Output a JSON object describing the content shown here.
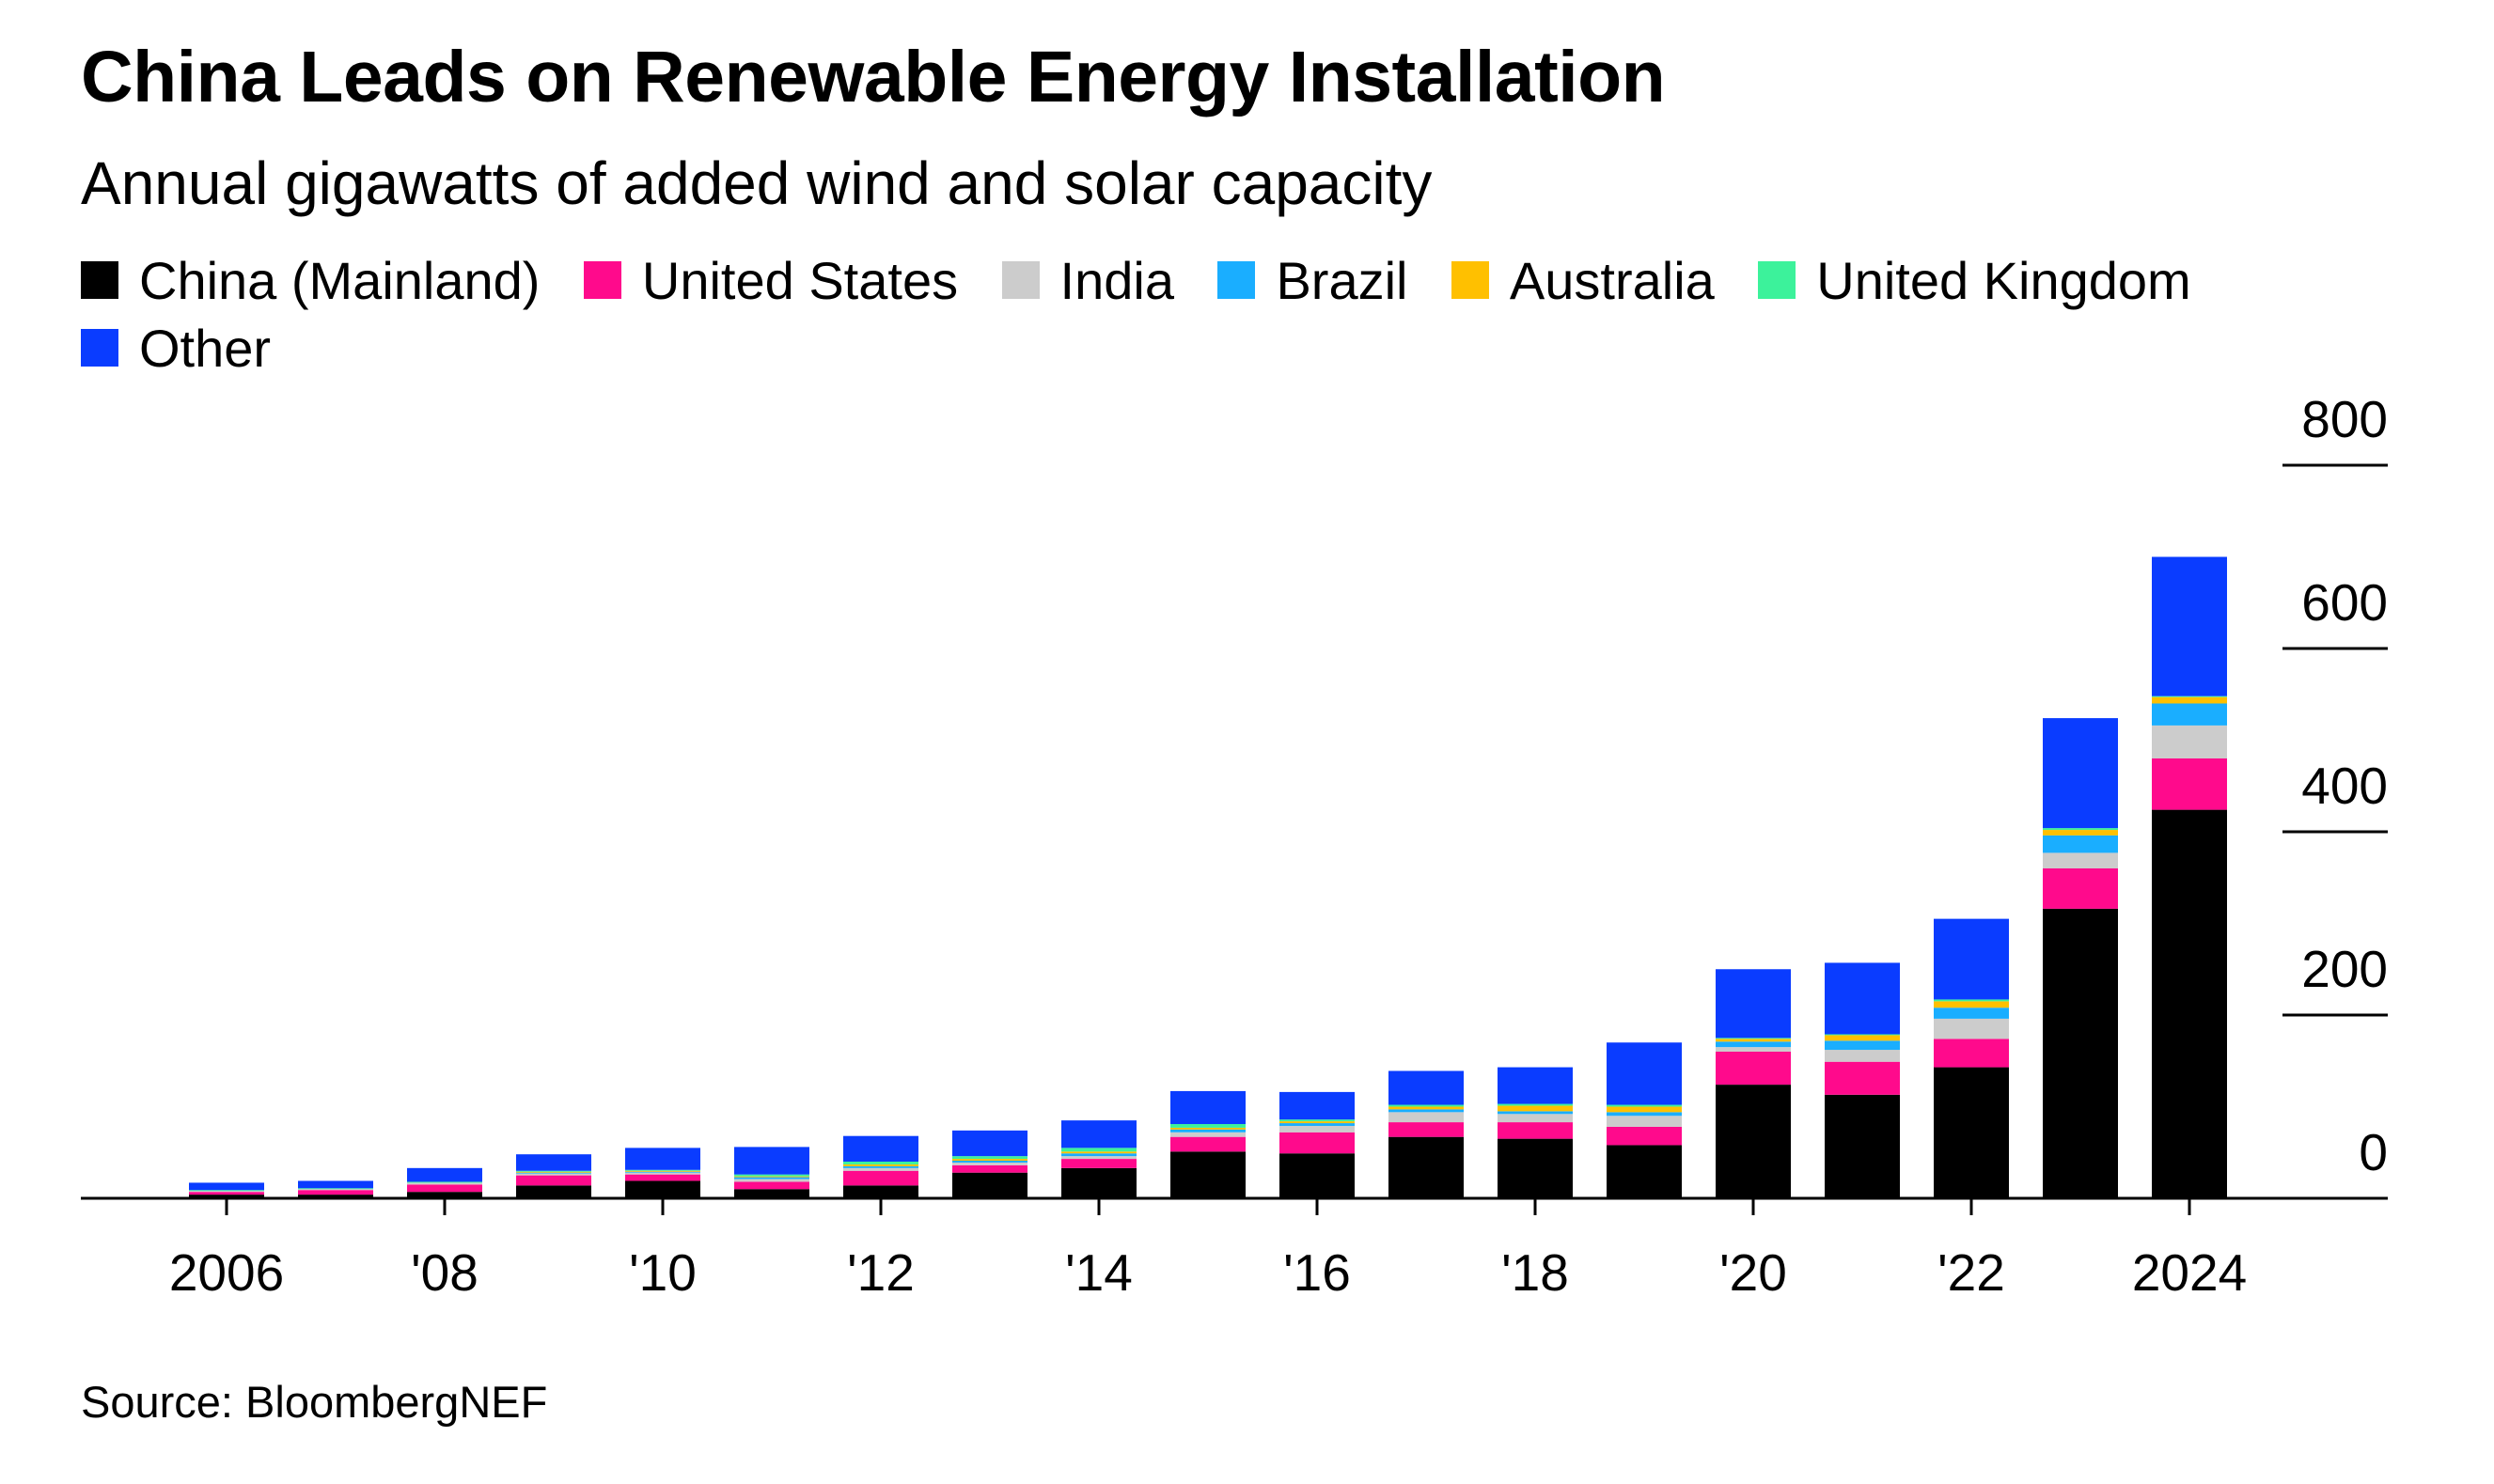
{
  "title": "China Leads on Renewable Energy Installation",
  "subtitle": "Annual gigawatts of added wind and solar capacity",
  "source": "Source: BloombergNEF",
  "legend": [
    {
      "label": "China (Mainland)",
      "color": "#000000"
    },
    {
      "label": "United States",
      "color": "#ff0a8c"
    },
    {
      "label": "India",
      "color": "#cccccc"
    },
    {
      "label": "Brazil",
      "color": "#1aaeff"
    },
    {
      "label": "Australia",
      "color": "#ffc000"
    },
    {
      "label": "United Kingdom",
      "color": "#3cf29b"
    },
    {
      "label": "Other",
      "color": "#0a3cff"
    }
  ],
  "chart_data": {
    "type": "bar",
    "stacked": true,
    "title": "China Leads on Renewable Energy Installation",
    "subtitle": "Annual gigawatts of added wind and solar capacity",
    "xlabel": "",
    "ylabel": "",
    "ylim": [
      0,
      800
    ],
    "yticks": [
      0,
      200,
      400,
      600,
      800
    ],
    "ytick_labels": [
      "0",
      "200",
      "400",
      "600",
      "800"
    ],
    "grid": false,
    "legend_position": "top-left",
    "categories": [
      "2006",
      "2007",
      "2008",
      "2009",
      "2010",
      "2011",
      "2012",
      "2013",
      "2014",
      "2015",
      "2016",
      "2017",
      "2018",
      "2019",
      "2020",
      "2021",
      "2022",
      "2023",
      "2024"
    ],
    "xtick_labels": [
      {
        "category": "2006",
        "label": "2006"
      },
      {
        "category": "2008",
        "label": "'08"
      },
      {
        "category": "2010",
        "label": "'10"
      },
      {
        "category": "2012",
        "label": "'12"
      },
      {
        "category": "2014",
        "label": "'14"
      },
      {
        "category": "2016",
        "label": "'16"
      },
      {
        "category": "2018",
        "label": "'18"
      },
      {
        "category": "2020",
        "label": "'20"
      },
      {
        "category": "2022",
        "label": "'22"
      },
      {
        "category": "2024",
        "label": "2024"
      }
    ],
    "series": [
      {
        "name": "China (Mainland)",
        "color": "#000000",
        "values": [
          4,
          4,
          7,
          14,
          19,
          10,
          14,
          28,
          33,
          51,
          49,
          67,
          65,
          58,
          124,
          113,
          143,
          316,
          424
        ]
      },
      {
        "name": "United States",
        "color": "#ff0a8c",
        "values": [
          3,
          5,
          8,
          11,
          7,
          8,
          16,
          8,
          10,
          16,
          23,
          16,
          18,
          20,
          36,
          36,
          31,
          44,
          56
        ]
      },
      {
        "name": "India",
        "color": "#cccccc",
        "values": [
          1,
          1,
          2,
          2,
          2,
          3,
          3,
          3,
          3,
          5,
          7,
          11,
          9,
          12,
          5,
          13,
          22,
          17,
          36
        ]
      },
      {
        "name": "Brazil",
        "color": "#1aaeff",
        "values": [
          0,
          0,
          0,
          1,
          1,
          2,
          2,
          2,
          3,
          3,
          3,
          3,
          3,
          4,
          6,
          10,
          12,
          19,
          24
        ]
      },
      {
        "name": "Australia",
        "color": "#ffc000",
        "values": [
          0,
          0,
          0,
          1,
          1,
          1,
          2,
          2,
          2,
          2,
          2,
          3,
          6,
          6,
          3,
          6,
          7,
          6,
          7
        ]
      },
      {
        "name": "United Kingdom",
        "color": "#3cf29b",
        "values": [
          1,
          1,
          1,
          1,
          1,
          2,
          3,
          3,
          4,
          4,
          2,
          2,
          2,
          2,
          1,
          1,
          2,
          2,
          1
        ]
      },
      {
        "name": "Other",
        "color": "#0a3cff",
        "values": [
          8,
          8,
          15,
          18,
          24,
          30,
          28,
          28,
          30,
          36,
          30,
          37,
          40,
          68,
          75,
          78,
          88,
          120,
          152
        ]
      }
    ]
  }
}
